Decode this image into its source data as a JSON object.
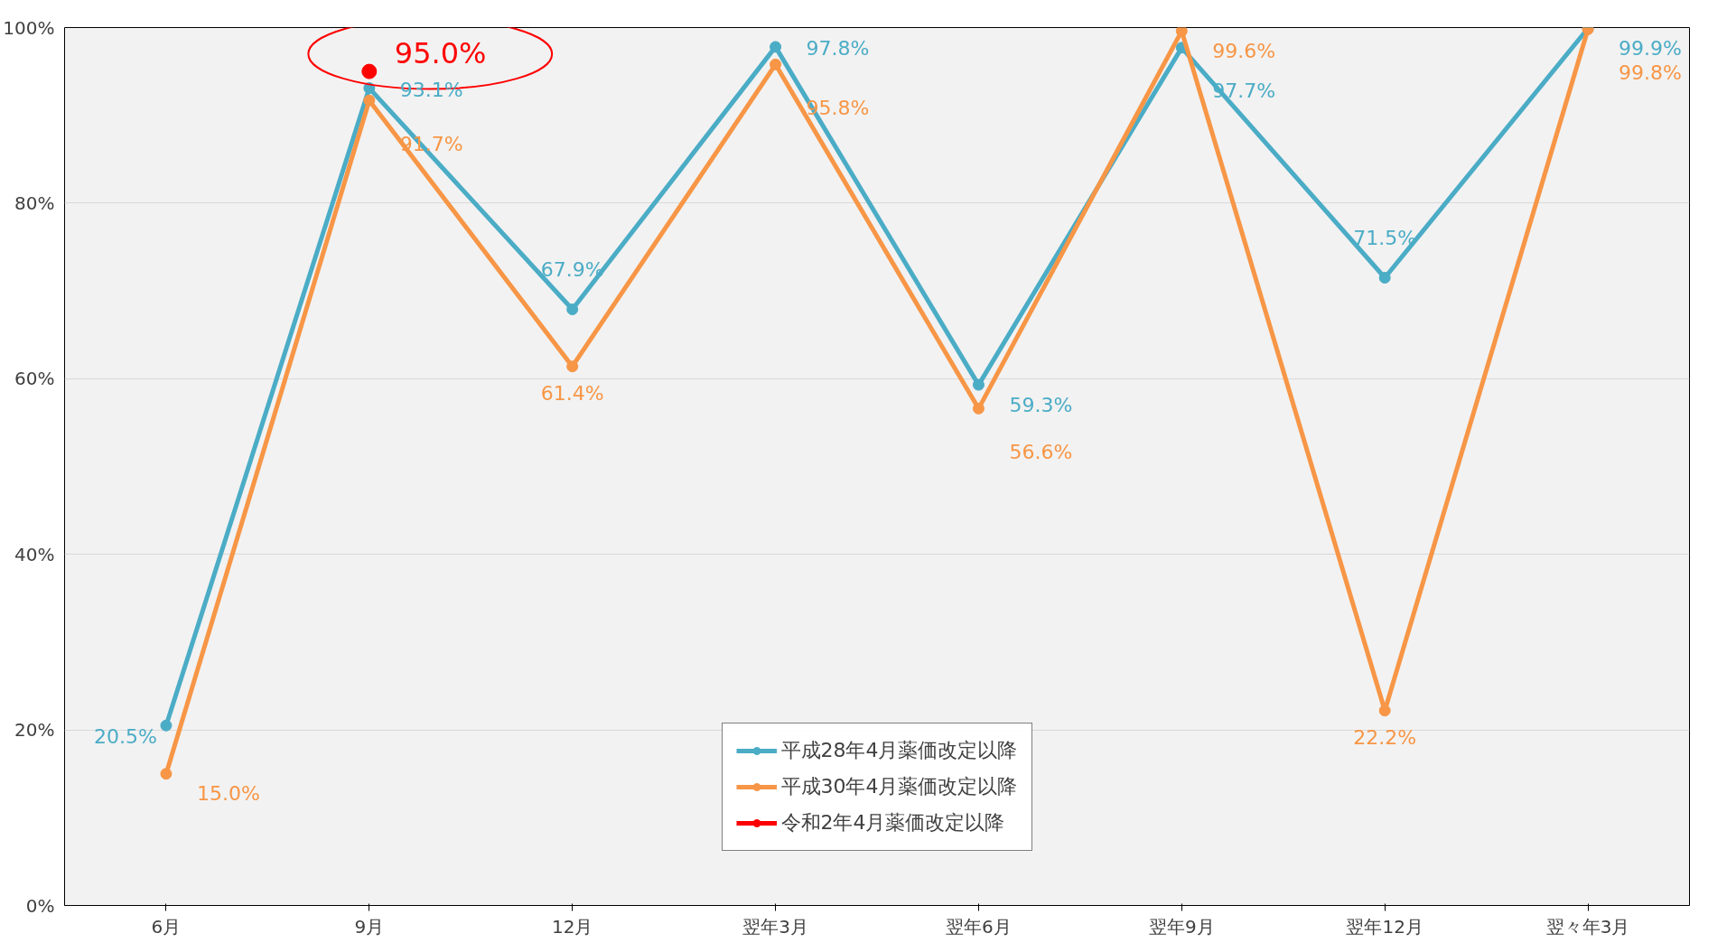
{
  "chart_data": {
    "type": "line",
    "categories": [
      "6月",
      "9月",
      "12月",
      "翌年3月",
      "翌年6月",
      "翌年9月",
      "翌年12月",
      "翌々年3月"
    ],
    "series": [
      {
        "name": "平成28年4月薬価改定以降",
        "color": "#4bacc6",
        "values": [
          20.5,
          93.1,
          67.9,
          97.8,
          59.3,
          97.7,
          71.5,
          99.9
        ],
        "value_labels": [
          "20.5%",
          "93.1%",
          "67.9%",
          "97.8%",
          "59.3%",
          "97.7%",
          "71.5%",
          "99.9%"
        ]
      },
      {
        "name": "平成30年4月薬価改定以降",
        "color": "#f79646",
        "values": [
          15.0,
          91.7,
          61.4,
          95.8,
          56.6,
          99.6,
          22.2,
          99.8
        ],
        "value_labels": [
          "15.0%",
          "91.7%",
          "61.4%",
          "95.8%",
          "56.6%",
          "99.6%",
          "22.2%",
          "99.8%"
        ]
      },
      {
        "name": "令和2年4月薬価改定以降",
        "color": "#ff0000",
        "values": [
          null,
          95.0,
          null,
          null,
          null,
          null,
          null,
          null
        ],
        "value_labels": [
          null,
          "95.0%",
          null,
          null,
          null,
          null,
          null,
          null
        ]
      }
    ],
    "ylim": [
      0,
      100
    ],
    "yticks": [
      {
        "value": 0,
        "label": "0%"
      },
      {
        "value": 20,
        "label": "20%"
      },
      {
        "value": 40,
        "label": "40%"
      },
      {
        "value": 60,
        "label": "60%"
      },
      {
        "value": 80,
        "label": "80%"
      },
      {
        "value": 100,
        "label": "100%"
      }
    ],
    "grid": "y",
    "legend": "bottom",
    "marker": "circle",
    "line_style": "solid"
  }
}
